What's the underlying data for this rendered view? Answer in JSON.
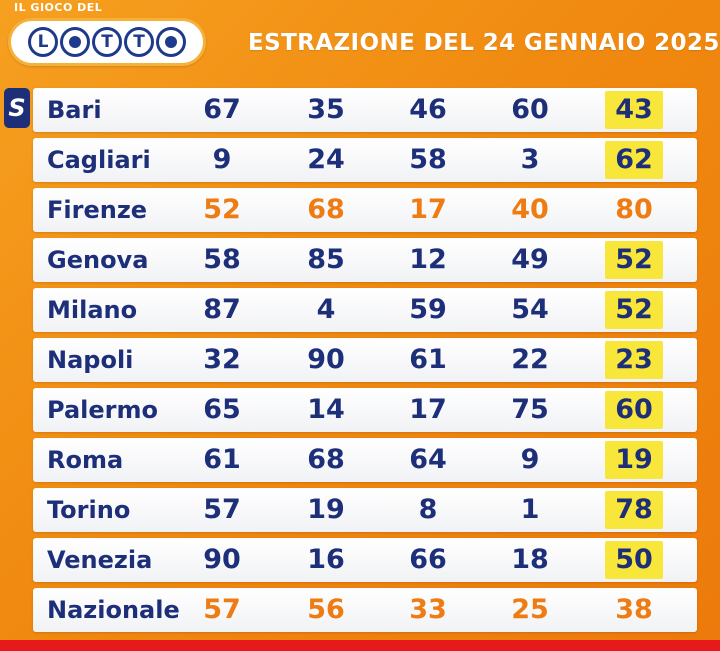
{
  "header": {
    "logo_top": "IL GIOCO DEL",
    "logo_letters": [
      "L",
      "T",
      "T"
    ],
    "title": "ESTRAZIONE DEL 24 GENNAIO 2025"
  },
  "badge": "S",
  "colors": {
    "background": "#f08a10",
    "name_text": "#1e2f7a",
    "highlight": "#f8e63a",
    "orange_numbers": "#ee7c12",
    "bottom_bar": "#e61a1a"
  },
  "rows": [
    {
      "name": "Bari",
      "numbers": [
        "67",
        "35",
        "46",
        "60",
        "43"
      ]
    },
    {
      "name": "Cagliari",
      "numbers": [
        "9",
        "24",
        "58",
        "3",
        "62"
      ]
    },
    {
      "name": "Firenze",
      "numbers": [
        "52",
        "68",
        "17",
        "40",
        "80"
      ]
    },
    {
      "name": "Genova",
      "numbers": [
        "58",
        "85",
        "12",
        "49",
        "52"
      ]
    },
    {
      "name": "Milano",
      "numbers": [
        "87",
        "4",
        "59",
        "54",
        "52"
      ]
    },
    {
      "name": "Napoli",
      "numbers": [
        "32",
        "90",
        "61",
        "22",
        "23"
      ]
    },
    {
      "name": "Palermo",
      "numbers": [
        "65",
        "14",
        "17",
        "75",
        "60"
      ]
    },
    {
      "name": "Roma",
      "numbers": [
        "61",
        "68",
        "64",
        "9",
        "19"
      ]
    },
    {
      "name": "Torino",
      "numbers": [
        "57",
        "19",
        "8",
        "1",
        "78"
      ]
    },
    {
      "name": "Venezia",
      "numbers": [
        "90",
        "16",
        "66",
        "18",
        "50"
      ]
    },
    {
      "name": "Nazionale",
      "numbers": [
        "57",
        "56",
        "33",
        "25",
        "38"
      ]
    }
  ]
}
